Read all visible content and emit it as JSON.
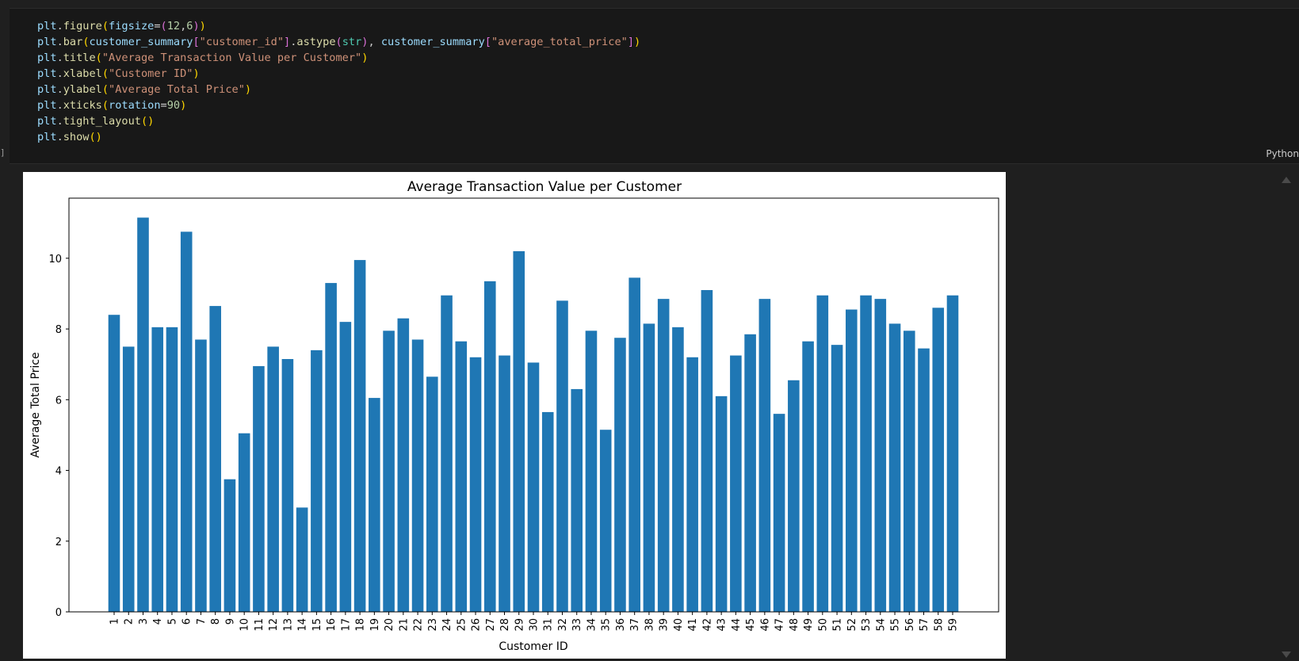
{
  "cell": {
    "bracket": "]",
    "language": "Python"
  },
  "code_tokens": [
    [
      [
        "plt",
        "v"
      ],
      [
        ".",
        "p"
      ],
      [
        "figure",
        "f"
      ],
      [
        "(",
        "b1"
      ],
      [
        "figsize",
        "v"
      ],
      [
        "=",
        "o"
      ],
      [
        "(",
        "b2"
      ],
      [
        "12",
        "n"
      ],
      [
        ",",
        "p"
      ],
      [
        "6",
        "n"
      ],
      [
        ")",
        "b2"
      ],
      [
        ")",
        "b1"
      ]
    ],
    [
      [
        "plt",
        "v"
      ],
      [
        ".",
        "p"
      ],
      [
        "bar",
        "f"
      ],
      [
        "(",
        "b1"
      ],
      [
        "customer_summary",
        "v"
      ],
      [
        "[",
        "b2"
      ],
      [
        "\"customer_id\"",
        "s"
      ],
      [
        "]",
        "b2"
      ],
      [
        ".",
        "p"
      ],
      [
        "astype",
        "f"
      ],
      [
        "(",
        "b2"
      ],
      [
        "str",
        "k"
      ],
      [
        ")",
        "b2"
      ],
      [
        ", ",
        "p"
      ],
      [
        "customer_summary",
        "v"
      ],
      [
        "[",
        "b2"
      ],
      [
        "\"average_total_price\"",
        "s"
      ],
      [
        "]",
        "b2"
      ],
      [
        ")",
        "b1"
      ]
    ],
    [
      [
        "plt",
        "v"
      ],
      [
        ".",
        "p"
      ],
      [
        "title",
        "f"
      ],
      [
        "(",
        "b1"
      ],
      [
        "\"Average Transaction Value per Customer\"",
        "s"
      ],
      [
        ")",
        "b1"
      ]
    ],
    [
      [
        "plt",
        "v"
      ],
      [
        ".",
        "p"
      ],
      [
        "xlabel",
        "f"
      ],
      [
        "(",
        "b1"
      ],
      [
        "\"Customer ID\"",
        "s"
      ],
      [
        ")",
        "b1"
      ]
    ],
    [
      [
        "plt",
        "v"
      ],
      [
        ".",
        "p"
      ],
      [
        "ylabel",
        "f"
      ],
      [
        "(",
        "b1"
      ],
      [
        "\"Average Total Price\"",
        "s"
      ],
      [
        ")",
        "b1"
      ]
    ],
    [
      [
        "plt",
        "v"
      ],
      [
        ".",
        "p"
      ],
      [
        "xticks",
        "f"
      ],
      [
        "(",
        "b1"
      ],
      [
        "rotation",
        "v"
      ],
      [
        "=",
        "o"
      ],
      [
        "90",
        "n"
      ],
      [
        ")",
        "b1"
      ]
    ],
    [
      [
        "plt",
        "v"
      ],
      [
        ".",
        "p"
      ],
      [
        "tight_layout",
        "f"
      ],
      [
        "()",
        "b1"
      ]
    ],
    [
      [
        "plt",
        "v"
      ],
      [
        ".",
        "p"
      ],
      [
        "show",
        "f"
      ],
      [
        "()",
        "b1"
      ]
    ]
  ],
  "colors": {
    "bar": "#1f77b4",
    "editor_bg": "#181818",
    "app_bg": "#1f1f1f"
  },
  "chart_data": {
    "type": "bar",
    "title": "Average Transaction Value per Customer",
    "xlabel": "Customer ID",
    "ylabel": "Average Total Price",
    "categories": [
      "1",
      "2",
      "3",
      "4",
      "5",
      "6",
      "7",
      "8",
      "9",
      "10",
      "11",
      "12",
      "13",
      "14",
      "15",
      "16",
      "17",
      "18",
      "19",
      "20",
      "21",
      "22",
      "23",
      "24",
      "25",
      "26",
      "27",
      "28",
      "29",
      "30",
      "31",
      "32",
      "33",
      "34",
      "35",
      "36",
      "37",
      "38",
      "39",
      "40",
      "41",
      "42",
      "43",
      "44",
      "45",
      "46",
      "47",
      "48",
      "49",
      "50",
      "51",
      "52",
      "53",
      "54",
      "55",
      "56",
      "57",
      "58",
      "59"
    ],
    "values": [
      8.4,
      7.5,
      11.15,
      8.05,
      8.05,
      10.75,
      7.7,
      8.65,
      3.75,
      5.05,
      6.95,
      7.5,
      7.15,
      2.95,
      7.4,
      9.3,
      8.2,
      9.95,
      6.05,
      7.95,
      8.3,
      7.7,
      6.65,
      8.95,
      7.65,
      7.2,
      9.35,
      7.25,
      10.2,
      7.05,
      5.65,
      8.8,
      6.3,
      7.95,
      5.15,
      7.75,
      9.45,
      8.15,
      8.85,
      8.05,
      7.2,
      9.1,
      6.1,
      7.25,
      7.85,
      8.85,
      5.6,
      6.55,
      7.65,
      8.95,
      7.55,
      8.55,
      8.95,
      8.85,
      8.15,
      7.95,
      7.45,
      8.6,
      8.95
    ],
    "ylim": [
      0,
      11.7
    ],
    "yticks": [
      0,
      2,
      4,
      6,
      8,
      10
    ],
    "xtick_rotation": 90,
    "grid": false,
    "legend": "none"
  }
}
